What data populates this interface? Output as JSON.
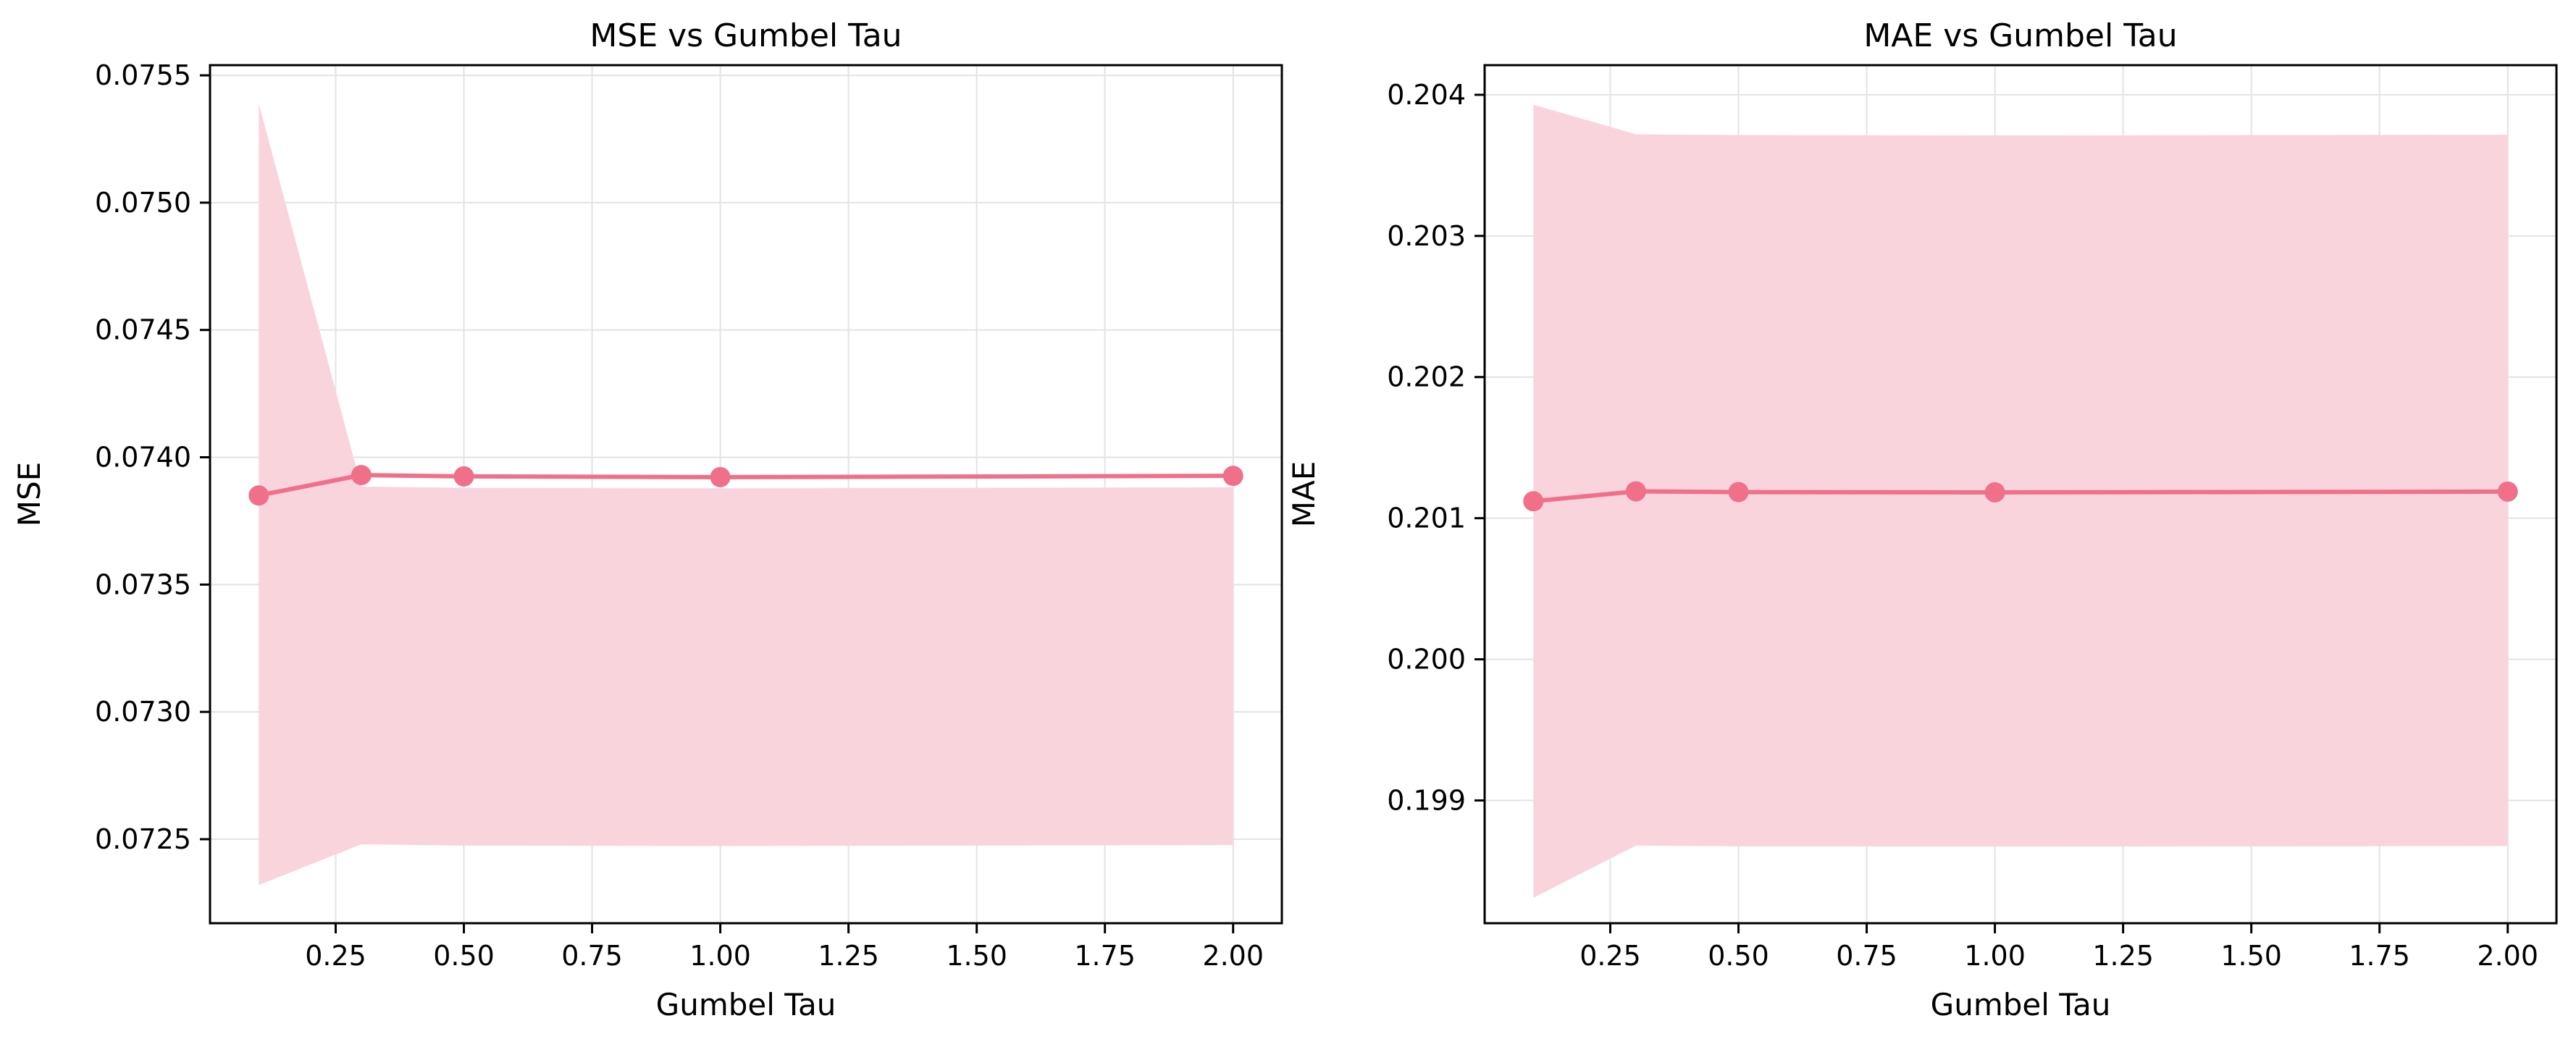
{
  "chart_data": [
    {
      "type": "line",
      "title": "MSE vs Gumbel Tau",
      "xlabel": "Gumbel Tau",
      "ylabel": "MSE",
      "x": [
        0.1,
        0.3,
        0.5,
        1.0,
        2.0
      ],
      "series": [
        {
          "values": [
            0.07385,
            0.07393,
            0.073925,
            0.073922,
            0.073927
          ],
          "band_lower": [
            0.07232,
            0.07248,
            0.072475,
            0.072473,
            0.072477
          ],
          "band_upper": [
            0.07539,
            0.073885,
            0.07388,
            0.073878,
            0.073882
          ],
          "color": "#f0708a",
          "band_color": "#fad4dc"
        }
      ],
      "xlim": [
        0.005,
        2.095
      ],
      "ylim": [
        0.07217,
        0.07554
      ],
      "xticks": [
        0.25,
        0.5,
        0.75,
        1.0,
        1.25,
        1.5,
        1.75,
        2.0
      ],
      "xtick_labels": [
        "0.25",
        "0.50",
        "0.75",
        "1.00",
        "1.25",
        "1.50",
        "1.75",
        "2.00"
      ],
      "yticks": [
        0.0725,
        0.073,
        0.0735,
        0.074,
        0.0745,
        0.075,
        0.0755
      ],
      "ytick_labels": [
        "0.0725",
        "0.0730",
        "0.0735",
        "0.0740",
        "0.0745",
        "0.0750",
        "0.0755"
      ],
      "grid": true,
      "legend": "none"
    },
    {
      "type": "line",
      "title": "MAE vs Gumbel Tau",
      "xlabel": "Gumbel Tau",
      "ylabel": "MAE",
      "x": [
        0.1,
        0.3,
        0.5,
        1.0,
        2.0
      ],
      "series": [
        {
          "values": [
            0.20112,
            0.20119,
            0.201185,
            0.201183,
            0.201188
          ],
          "band_lower": [
            0.19831,
            0.19868,
            0.198675,
            0.198673,
            0.198677
          ],
          "band_upper": [
            0.20393,
            0.20372,
            0.203715,
            0.203712,
            0.203717
          ],
          "color": "#f0708a",
          "band_color": "#fad4dc"
        }
      ],
      "xlim": [
        0.005,
        2.095
      ],
      "ylim": [
        0.19813,
        0.20421
      ],
      "xticks": [
        0.25,
        0.5,
        0.75,
        1.0,
        1.25,
        1.5,
        1.75,
        2.0
      ],
      "xtick_labels": [
        "0.25",
        "0.50",
        "0.75",
        "1.00",
        "1.25",
        "1.50",
        "1.75",
        "2.00"
      ],
      "yticks": [
        0.199,
        0.2,
        0.201,
        0.202,
        0.203,
        0.204
      ],
      "ytick_labels": [
        "0.199",
        "0.200",
        "0.201",
        "0.202",
        "0.203",
        "0.204"
      ],
      "grid": true,
      "legend": "none"
    }
  ]
}
